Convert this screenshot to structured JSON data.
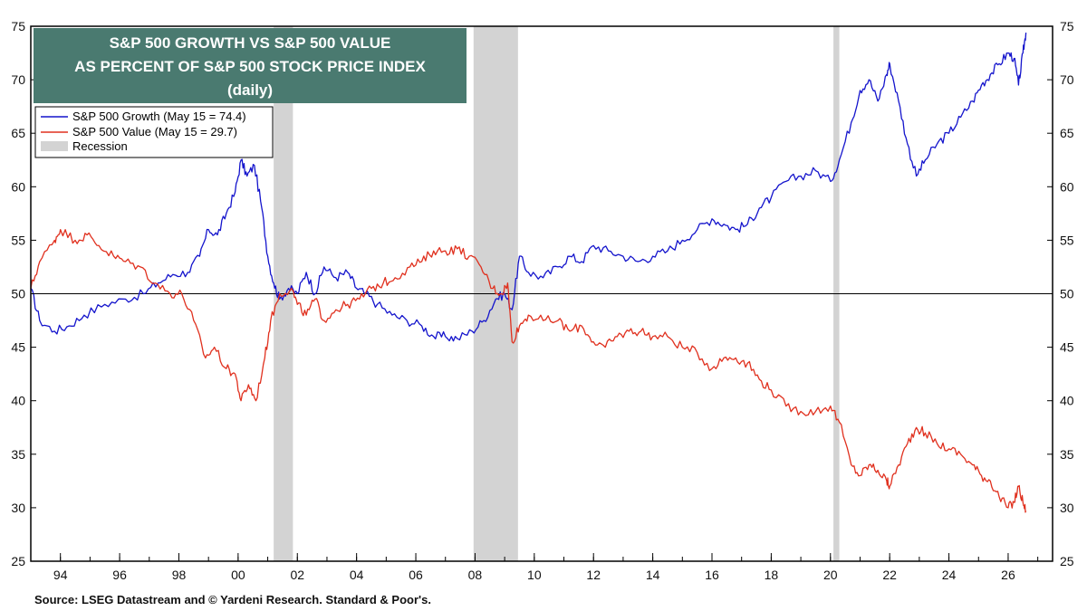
{
  "chart_data": {
    "type": "line",
    "title_lines": [
      "S&P 500 GROWTH VS S&P 500 VALUE",
      "AS PERCENT OF S&P 500 STOCK PRICE INDEX",
      "(daily)"
    ],
    "title_bg_color": "#4a7a70",
    "source": "Source: LSEG Datastream and © Yardeni Research. Standard & Poor's.",
    "x_range": [
      1993.0,
      2027.5
    ],
    "y_range": [
      25,
      75
    ],
    "y_ticks": [
      25,
      30,
      35,
      40,
      45,
      50,
      55,
      60,
      65,
      70,
      75
    ],
    "x_tick_labels": [
      {
        "x": 1994,
        "label": "94"
      },
      {
        "x": 1996,
        "label": "96"
      },
      {
        "x": 1998,
        "label": "98"
      },
      {
        "x": 2000,
        "label": "00"
      },
      {
        "x": 2002,
        "label": "02"
      },
      {
        "x": 2004,
        "label": "04"
      },
      {
        "x": 2006,
        "label": "06"
      },
      {
        "x": 2008,
        "label": "08"
      },
      {
        "x": 2010,
        "label": "10"
      },
      {
        "x": 2012,
        "label": "12"
      },
      {
        "x": 2014,
        "label": "14"
      },
      {
        "x": 2016,
        "label": "16"
      },
      {
        "x": 2018,
        "label": "18"
      },
      {
        "x": 2020,
        "label": "20"
      },
      {
        "x": 2022,
        "label": "22"
      },
      {
        "x": 2024,
        "label": "24"
      },
      {
        "x": 2026,
        "label": "26"
      }
    ],
    "reference_line": 50,
    "recessions": [
      [
        2001.2,
        2001.85
      ],
      [
        2007.95,
        2009.45
      ],
      [
        2020.1,
        2020.3
      ]
    ],
    "legend": [
      {
        "label": "S&P 500 Growth (May 15 = 74.4)",
        "color": "#1414cc",
        "kind": "line"
      },
      {
        "label": "S&P 500 Value (May 15 = 29.7)",
        "color": "#e0301e",
        "kind": "line"
      },
      {
        "label": "Recession",
        "color": "#d3d3d3",
        "kind": "box"
      }
    ],
    "series": [
      {
        "name": "S&P 500 Growth (May 15 = 74.4)",
        "color": "#1414cc",
        "points": [
          [
            1993.0,
            50.5
          ],
          [
            1993.3,
            47.5
          ],
          [
            1993.8,
            46.5
          ],
          [
            1994.3,
            47.0
          ],
          [
            1994.8,
            48.0
          ],
          [
            1995.5,
            49.0
          ],
          [
            1996.2,
            49.5
          ],
          [
            1996.8,
            50.0
          ],
          [
            1997.3,
            51.0
          ],
          [
            1997.8,
            51.8
          ],
          [
            1998.3,
            52.0
          ],
          [
            1998.7,
            53.5
          ],
          [
            1999.0,
            56.0
          ],
          [
            1999.3,
            55.5
          ],
          [
            1999.6,
            57.5
          ],
          [
            1999.9,
            59.5
          ],
          [
            2000.1,
            62.5
          ],
          [
            2000.3,
            61.0
          ],
          [
            2000.55,
            62.0
          ],
          [
            2000.8,
            58.0
          ],
          [
            2001.0,
            53.5
          ],
          [
            2001.2,
            51.0
          ],
          [
            2001.4,
            49.5
          ],
          [
            2001.7,
            50.5
          ],
          [
            2002.0,
            50.0
          ],
          [
            2002.3,
            52.0
          ],
          [
            2002.6,
            50.0
          ],
          [
            2002.9,
            52.5
          ],
          [
            2003.3,
            51.5
          ],
          [
            2003.7,
            52.0
          ],
          [
            2004.0,
            50.5
          ],
          [
            2004.3,
            50.0
          ],
          [
            2004.7,
            49.0
          ],
          [
            2005.2,
            48.0
          ],
          [
            2005.7,
            47.5
          ],
          [
            2006.2,
            47.0
          ],
          [
            2006.6,
            46.0
          ],
          [
            2007.0,
            46.0
          ],
          [
            2007.4,
            45.8
          ],
          [
            2007.9,
            46.5
          ],
          [
            2008.3,
            47.5
          ],
          [
            2008.7,
            49.5
          ],
          [
            2009.0,
            50.0
          ],
          [
            2009.25,
            48.5
          ],
          [
            2009.5,
            53.5
          ],
          [
            2009.8,
            52.0
          ],
          [
            2010.3,
            51.5
          ],
          [
            2010.8,
            52.5
          ],
          [
            2011.2,
            53.5
          ],
          [
            2011.6,
            53.0
          ],
          [
            2012.0,
            54.5
          ],
          [
            2012.5,
            54.0
          ],
          [
            2013.0,
            53.5
          ],
          [
            2013.5,
            53.0
          ],
          [
            2014.0,
            53.5
          ],
          [
            2014.5,
            54.0
          ],
          [
            2015.0,
            55.0
          ],
          [
            2015.5,
            56.0
          ],
          [
            2016.0,
            57.0
          ],
          [
            2016.4,
            56.5
          ],
          [
            2016.8,
            56.0
          ],
          [
            2017.2,
            56.5
          ],
          [
            2017.6,
            58.0
          ],
          [
            2018.0,
            59.0
          ],
          [
            2018.5,
            60.5
          ],
          [
            2019.0,
            61.0
          ],
          [
            2019.5,
            61.5
          ],
          [
            2020.0,
            60.5
          ],
          [
            2020.3,
            62.5
          ],
          [
            2020.7,
            66.0
          ],
          [
            2021.0,
            69.0
          ],
          [
            2021.3,
            70.0
          ],
          [
            2021.6,
            68.0
          ],
          [
            2021.9,
            70.5
          ],
          [
            2022.0,
            71.5
          ],
          [
            2022.3,
            68.0
          ],
          [
            2022.6,
            64.0
          ],
          [
            2022.9,
            61.0
          ],
          [
            2023.2,
            62.5
          ],
          [
            2023.6,
            64.0
          ],
          [
            2024.0,
            65.0
          ],
          [
            2024.4,
            66.5
          ],
          [
            2024.8,
            68.0
          ],
          [
            2025.1,
            69.5
          ],
          [
            2025.4,
            70.5
          ],
          [
            2025.7,
            71.5
          ],
          [
            2026.0,
            72.5
          ],
          [
            2026.2,
            72.0
          ],
          [
            2026.35,
            69.5
          ],
          [
            2026.5,
            72.5
          ],
          [
            2026.6,
            74.4
          ]
        ]
      },
      {
        "name": "S&P 500 Value (May 15 = 29.7)",
        "color": "#e0301e",
        "points": [
          [
            1993.0,
            50.5
          ],
          [
            1993.3,
            53.0
          ],
          [
            1993.8,
            55.0
          ],
          [
            1994.0,
            56.0
          ],
          [
            1994.5,
            55.0
          ],
          [
            1994.9,
            55.5
          ],
          [
            1995.3,
            54.5
          ],
          [
            1995.8,
            53.5
          ],
          [
            1996.2,
            53.0
          ],
          [
            1996.7,
            52.5
          ],
          [
            1997.2,
            51.0
          ],
          [
            1997.7,
            50.0
          ],
          [
            1998.1,
            50.0
          ],
          [
            1998.5,
            47.5
          ],
          [
            1998.9,
            44.0
          ],
          [
            1999.2,
            45.0
          ],
          [
            1999.6,
            43.0
          ],
          [
            1999.9,
            42.5
          ],
          [
            2000.1,
            40.0
          ],
          [
            2000.35,
            41.5
          ],
          [
            2000.6,
            40.0
          ],
          [
            2000.9,
            44.0
          ],
          [
            2001.1,
            47.5
          ],
          [
            2001.4,
            50.0
          ],
          [
            2001.8,
            50.5
          ],
          [
            2002.0,
            49.0
          ],
          [
            2002.3,
            48.0
          ],
          [
            2002.6,
            49.5
          ],
          [
            2002.9,
            47.5
          ],
          [
            2003.3,
            48.5
          ],
          [
            2003.7,
            49.0
          ],
          [
            2004.1,
            49.5
          ],
          [
            2004.5,
            50.5
          ],
          [
            2004.9,
            51.0
          ],
          [
            2005.3,
            51.5
          ],
          [
            2005.8,
            52.5
          ],
          [
            2006.2,
            53.0
          ],
          [
            2006.6,
            54.0
          ],
          [
            2007.0,
            54.0
          ],
          [
            2007.4,
            54.2
          ],
          [
            2007.8,
            53.5
          ],
          [
            2008.2,
            52.5
          ],
          [
            2008.6,
            50.5
          ],
          [
            2008.9,
            50.0
          ],
          [
            2009.1,
            51.0
          ],
          [
            2009.25,
            45.5
          ],
          [
            2009.5,
            47.0
          ],
          [
            2009.8,
            48.0
          ],
          [
            2010.3,
            47.5
          ],
          [
            2010.8,
            47.5
          ],
          [
            2011.2,
            46.5
          ],
          [
            2011.6,
            47.0
          ],
          [
            2012.0,
            45.5
          ],
          [
            2012.4,
            45.0
          ],
          [
            2012.8,
            46.0
          ],
          [
            2013.2,
            46.5
          ],
          [
            2013.6,
            46.5
          ],
          [
            2014.0,
            46.0
          ],
          [
            2014.5,
            46.0
          ],
          [
            2015.0,
            45.0
          ],
          [
            2015.5,
            44.5
          ],
          [
            2016.0,
            43.0
          ],
          [
            2016.4,
            44.0
          ],
          [
            2016.8,
            44.0
          ],
          [
            2017.2,
            43.5
          ],
          [
            2017.6,
            42.0
          ],
          [
            2018.0,
            41.0
          ],
          [
            2018.5,
            39.5
          ],
          [
            2019.0,
            39.0
          ],
          [
            2019.5,
            39.0
          ],
          [
            2020.0,
            39.5
          ],
          [
            2020.3,
            38.0
          ],
          [
            2020.7,
            34.0
          ],
          [
            2021.0,
            33.0
          ],
          [
            2021.3,
            34.0
          ],
          [
            2021.6,
            33.5
          ],
          [
            2021.9,
            32.5
          ],
          [
            2022.0,
            32.0
          ],
          [
            2022.3,
            34.0
          ],
          [
            2022.6,
            36.0
          ],
          [
            2022.9,
            37.5
          ],
          [
            2023.2,
            37.0
          ],
          [
            2023.6,
            36.0
          ],
          [
            2024.0,
            35.5
          ],
          [
            2024.4,
            35.0
          ],
          [
            2024.8,
            34.0
          ],
          [
            2025.1,
            33.0
          ],
          [
            2025.4,
            32.5
          ],
          [
            2025.7,
            31.0
          ],
          [
            2026.0,
            30.0
          ],
          [
            2026.2,
            30.5
          ],
          [
            2026.35,
            32.0
          ],
          [
            2026.5,
            30.5
          ],
          [
            2026.6,
            29.7
          ]
        ]
      }
    ]
  }
}
